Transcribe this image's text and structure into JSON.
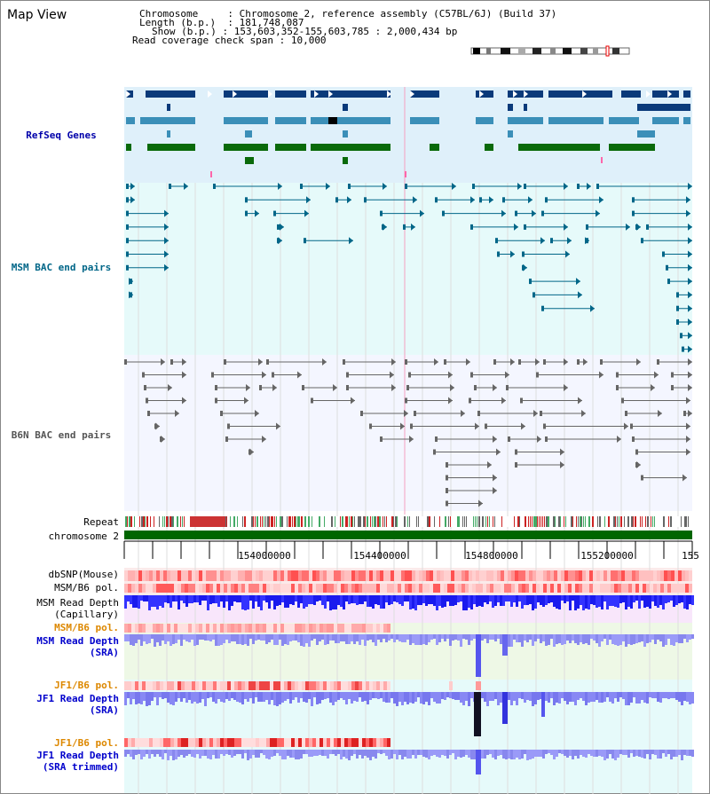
{
  "header": {
    "title": "Map View",
    "chromosome_label": "Chromosome",
    "chromosome_value": ": Chromosome 2, reference assembly (C57BL/6J) (Build 37)",
    "length_label": "Length (b.p.)",
    "length_value": ": 181,748,087",
    "show_label": "Show (b.p.)",
    "show_value": ": 153,603,352-155,603,785 : 2,000,434 bp",
    "coverage_label": "Read coverage check span",
    "coverage_value": ": 10,000"
  },
  "tracks": {
    "refseq": {
      "label": "RefSeq Genes",
      "color": "#0000aa"
    },
    "msm_bac": {
      "label": "MSM BAC end pairs",
      "color": "#006688"
    },
    "b6n_bac": {
      "label": "B6N BAC end pairs",
      "color": "#555555"
    },
    "repeat": {
      "label": "Repeat"
    },
    "chromosome": {
      "label": "chromosome 2"
    },
    "dbsnp": {
      "label": "dbSNP(Mouse)"
    },
    "msm_b6_pol": {
      "label": "MSM/B6 pol."
    },
    "msm_depth_cap": {
      "label": "MSM Read Depth",
      "sub": "(Capillary)"
    },
    "msm_b6_pol2": {
      "label": "MSM/B6 pol.",
      "color": "#dd8800"
    },
    "msm_depth_sra": {
      "label": "MSM Read Depth",
      "sub": "(SRA)",
      "color": "#0000cc"
    },
    "jf1_b6_pol": {
      "label": "JF1/B6 pol.",
      "color": "#dd8800"
    },
    "jf1_depth_sra": {
      "label": "JF1 Read Depth",
      "sub": "(SRA)",
      "color": "#0000cc"
    },
    "jf1_b6_pol2": {
      "label": "JF1/B6 pol.",
      "color": "#dd8800"
    },
    "jf1_depth_trim": {
      "label": "JF1 Read Depth",
      "sub": "(SRA trimmed)",
      "color": "#0000cc"
    }
  },
  "axis": {
    "ticks": [
      "154000000",
      "154400000",
      "154800000",
      "155200000",
      "155"
    ]
  },
  "colors": {
    "refseq_dark": "#0a3a7a",
    "refseq_mid": "#3b8fb8",
    "refseq_green": "#0a6a0a",
    "chromosome_bar": "#006600",
    "depth_blue": "#1a1aee"
  }
}
